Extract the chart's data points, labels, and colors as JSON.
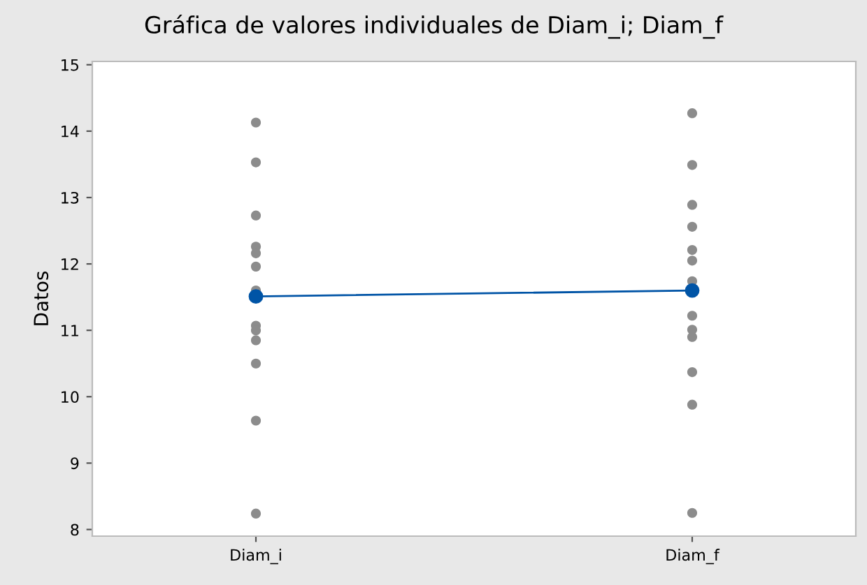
{
  "chart_data": {
    "type": "scatter",
    "title": "Gráfica de valores individuales de Diam_i; Diam_f",
    "ylabel": "Datos",
    "categories": [
      "Diam_i",
      "Diam_f"
    ],
    "series": [
      {
        "color": "#8c8c8c",
        "x": [
          "Diam_i",
          "Diam_i",
          "Diam_i",
          "Diam_i",
          "Diam_i",
          "Diam_i",
          "Diam_i",
          "Diam_i",
          "Diam_i",
          "Diam_i",
          "Diam_i",
          "Diam_i",
          "Diam_i",
          "Diam_f",
          "Diam_f",
          "Diam_f",
          "Diam_f",
          "Diam_f",
          "Diam_f",
          "Diam_f",
          "Diam_f",
          "Diam_f",
          "Diam_f",
          "Diam_f",
          "Diam_f",
          "Diam_f"
        ],
        "values": [
          14.13,
          13.53,
          12.73,
          12.26,
          12.16,
          11.96,
          11.6,
          11.07,
          11.0,
          10.85,
          10.5,
          9.64,
          8.24,
          14.27,
          13.49,
          12.89,
          12.56,
          12.21,
          12.05,
          11.74,
          11.22,
          11.01,
          10.9,
          10.37,
          9.88,
          8.25
        ]
      },
      {
        "type": "line",
        "color": "#0054a6",
        "marker": "circle",
        "values": [
          11.51,
          11.6
        ]
      }
    ],
    "ylim": [
      7.9,
      15.05
    ],
    "yticks": [
      8,
      9,
      10,
      11,
      12,
      13,
      14,
      15
    ],
    "grid": false,
    "legend": false
  }
}
